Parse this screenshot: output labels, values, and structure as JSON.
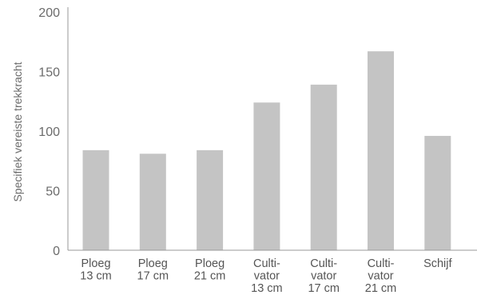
{
  "chart_data": {
    "type": "bar",
    "categories": [
      [
        "Ploeg",
        "13 cm"
      ],
      [
        "Ploeg",
        "17 cm"
      ],
      [
        "Ploeg",
        "21 cm"
      ],
      [
        "Culti-",
        "vator",
        "13 cm"
      ],
      [
        "Culti-",
        "vator",
        "17 cm"
      ],
      [
        "Culti-",
        "vator",
        "21 cm"
      ],
      [
        "Schijf"
      ]
    ],
    "values": [
      84,
      81,
      84,
      124,
      139,
      167,
      96
    ],
    "title": "",
    "xlabel": "",
    "ylabel": "Specifiek vereiste trekkracht",
    "ylim": [
      0,
      200
    ],
    "yticks": [
      0,
      50,
      100,
      150,
      200
    ],
    "grid": false,
    "legend": "none",
    "bar_color": "#c4c4c4",
    "axis_color": "#9a9a9a"
  }
}
